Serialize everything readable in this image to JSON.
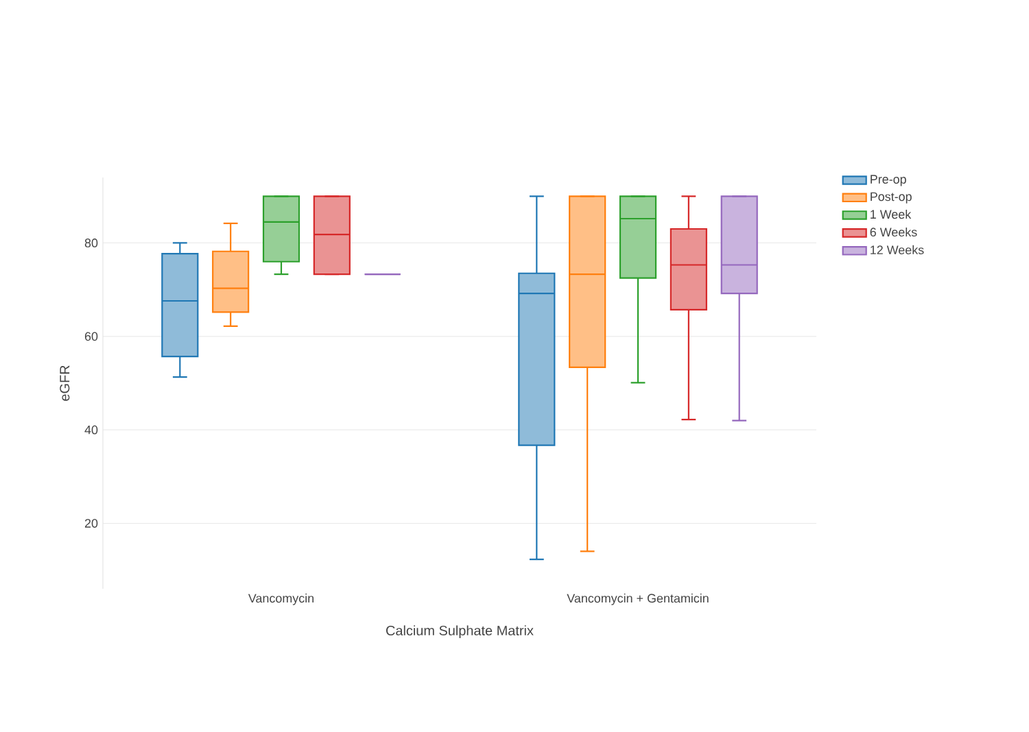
{
  "chart_data": {
    "type": "box",
    "xlabel": "Calcium Sulphate Matrix",
    "ylabel": "eGFR",
    "categories": [
      "Vancomycin",
      "Vancomycin + Gentamicin"
    ],
    "series": [
      {
        "name": "Pre-op",
        "color": "#1f77b4",
        "boxes": [
          {
            "low": 51.3,
            "q1": 55.7,
            "median": 67.6,
            "q3": 77.7,
            "high": 80
          },
          {
            "low": 12.3,
            "q1": 36.7,
            "median": 69.2,
            "q3": 73.5,
            "high": 90
          }
        ]
      },
      {
        "name": "Post-op",
        "color": "#ff7f0e",
        "boxes": [
          {
            "low": 62.2,
            "q1": 65.2,
            "median": 70.3,
            "q3": 78.2,
            "high": 84.2
          },
          {
            "low": 14,
            "q1": 53.4,
            "median": 73.3,
            "q3": 90,
            "high": 90
          }
        ]
      },
      {
        "name": "1 Week",
        "color": "#2ca02c",
        "boxes": [
          {
            "low": 73.3,
            "q1": 76,
            "median": 84.5,
            "q3": 90,
            "high": 90
          },
          {
            "low": 50.1,
            "q1": 72.5,
            "median": 85.2,
            "q3": 90,
            "high": 90
          }
        ]
      },
      {
        "name": "6 Weeks",
        "color": "#d62728",
        "boxes": [
          {
            "low": 73.3,
            "q1": 73.3,
            "median": 81.8,
            "q3": 90,
            "high": 90
          },
          {
            "low": 42.2,
            "q1": 65.7,
            "median": 75.3,
            "q3": 83,
            "high": 90
          }
        ]
      },
      {
        "name": "12 Weeks",
        "color": "#9467bd",
        "boxes": [
          {
            "low": 73.3,
            "q1": 73.3,
            "median": 73.3,
            "q3": 73.3,
            "high": 73.3
          },
          {
            "low": 42,
            "q1": 69.2,
            "median": 75.3,
            "q3": 90,
            "high": 90
          }
        ]
      }
    ],
    "ylim": [
      6,
      94
    ],
    "yticks": [
      20,
      40,
      60,
      80
    ],
    "grid": "y",
    "legend": "top right"
  }
}
